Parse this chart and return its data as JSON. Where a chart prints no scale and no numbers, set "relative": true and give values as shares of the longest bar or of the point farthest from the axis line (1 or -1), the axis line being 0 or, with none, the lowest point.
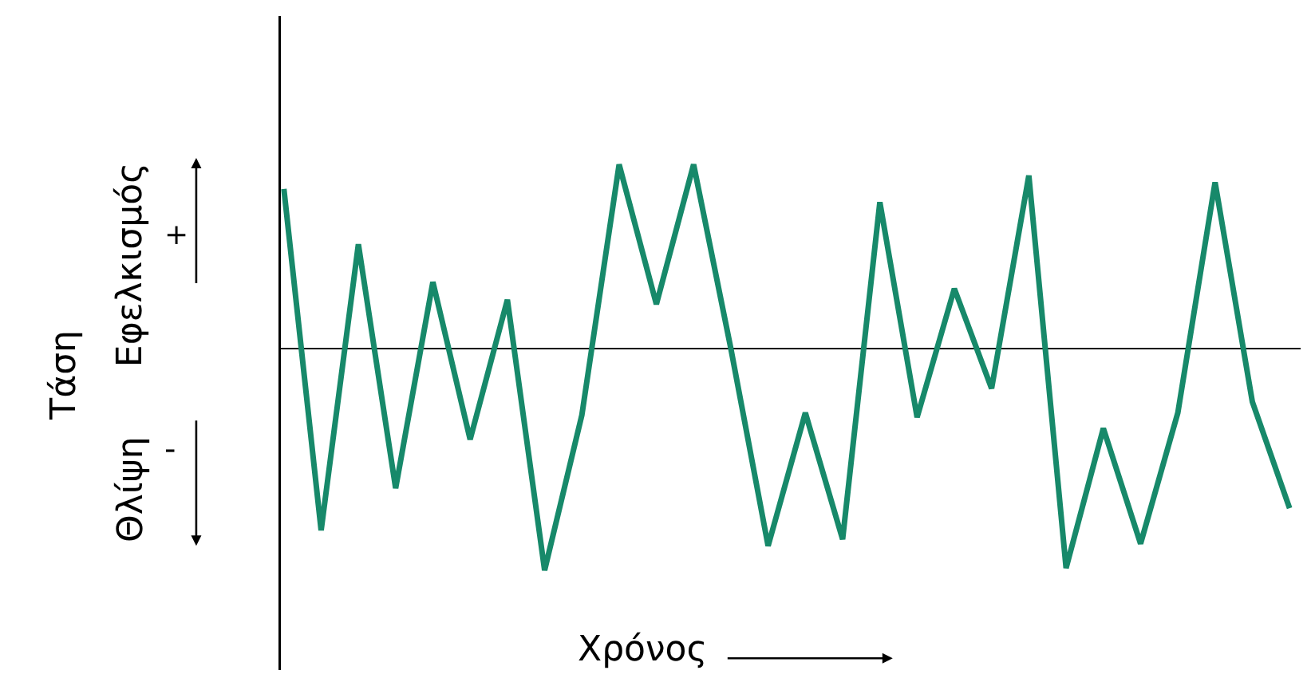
{
  "chart_data": {
    "type": "line",
    "relative": true,
    "xlabel": "Χρόνος",
    "color": "#17896a",
    "line_style": "solid",
    "marker": "none",
    "grid": false,
    "legend": false,
    "categories": [
      null,
      null,
      null,
      null,
      null,
      null,
      null,
      null,
      null,
      null,
      null,
      null,
      null,
      null,
      null,
      null,
      null,
      null,
      null,
      null,
      null,
      null,
      null,
      null,
      null,
      null,
      null,
      null
    ],
    "values": [
      0.72,
      -0.82,
      0.47,
      -0.63,
      0.3,
      -0.41,
      0.22,
      -1,
      -0.3,
      0.83,
      0.2,
      0.83,
      0,
      -0.89,
      -0.29,
      -0.86,
      0.66,
      -0.31,
      0.27,
      -0.18,
      0.78,
      -0.99,
      -0.36,
      -0.88,
      -0.29,
      0.75,
      -0.24,
      -0.72
    ],
    "annotations": [
      "Τάση",
      "Εφελκισμός",
      "+",
      "Θλίψη",
      "-"
    ]
  }
}
